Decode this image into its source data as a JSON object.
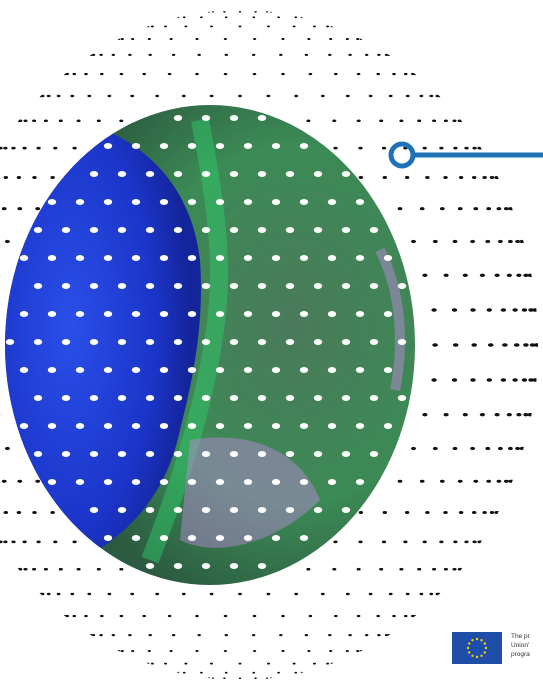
{
  "colors": {
    "background": "#ffffff",
    "dot_dark": "#111111",
    "dot_light": "#ffffff",
    "accent_line": "#1f72b8",
    "image_blue": "#1e3fd6",
    "image_green": "#3fa84c",
    "image_violet": "#b78ad8",
    "eu_blue": "#1f4ea8",
    "eu_star": "#ffcc00"
  },
  "icons": {
    "connector": "callout-ring-icon",
    "flag": "eu-flag-icon"
  },
  "funding": {
    "line1": "The pr",
    "line2": "Union'",
    "line3": "progra"
  }
}
